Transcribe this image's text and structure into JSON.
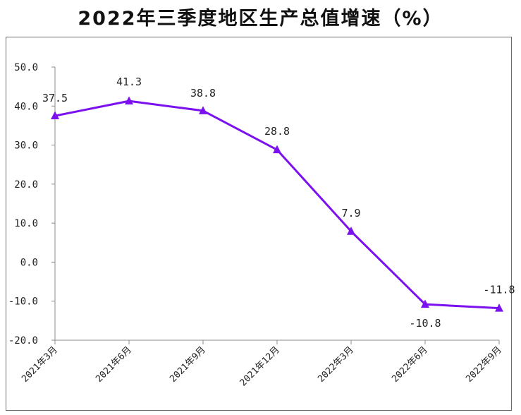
{
  "chart_data": {
    "type": "line",
    "title": "2022年三季度地区生产总值增速（%）",
    "categories": [
      "2021年3月",
      "2021年6月",
      "2021年9月",
      "2021年12月",
      "2022年3月",
      "2022年6月",
      "2022年9月"
    ],
    "series": [
      {
        "values": [
          37.5,
          41.3,
          38.8,
          28.8,
          7.9,
          -10.8,
          -11.8
        ],
        "labels": [
          "37.5",
          "41.3",
          "38.8",
          "28.8",
          "7.9",
          "-10.8",
          "-11.8"
        ],
        "color": "#7b11ee",
        "marker": "triangle"
      }
    ],
    "yticks": [
      "50.0",
      "40.0",
      "30.0",
      "20.0",
      "10.0",
      "0.0",
      "-10.0",
      "-20.0"
    ],
    "ylim": [
      -20,
      50
    ],
    "xlabel": "",
    "ylabel": "",
    "grid": false,
    "legend": "none"
  }
}
